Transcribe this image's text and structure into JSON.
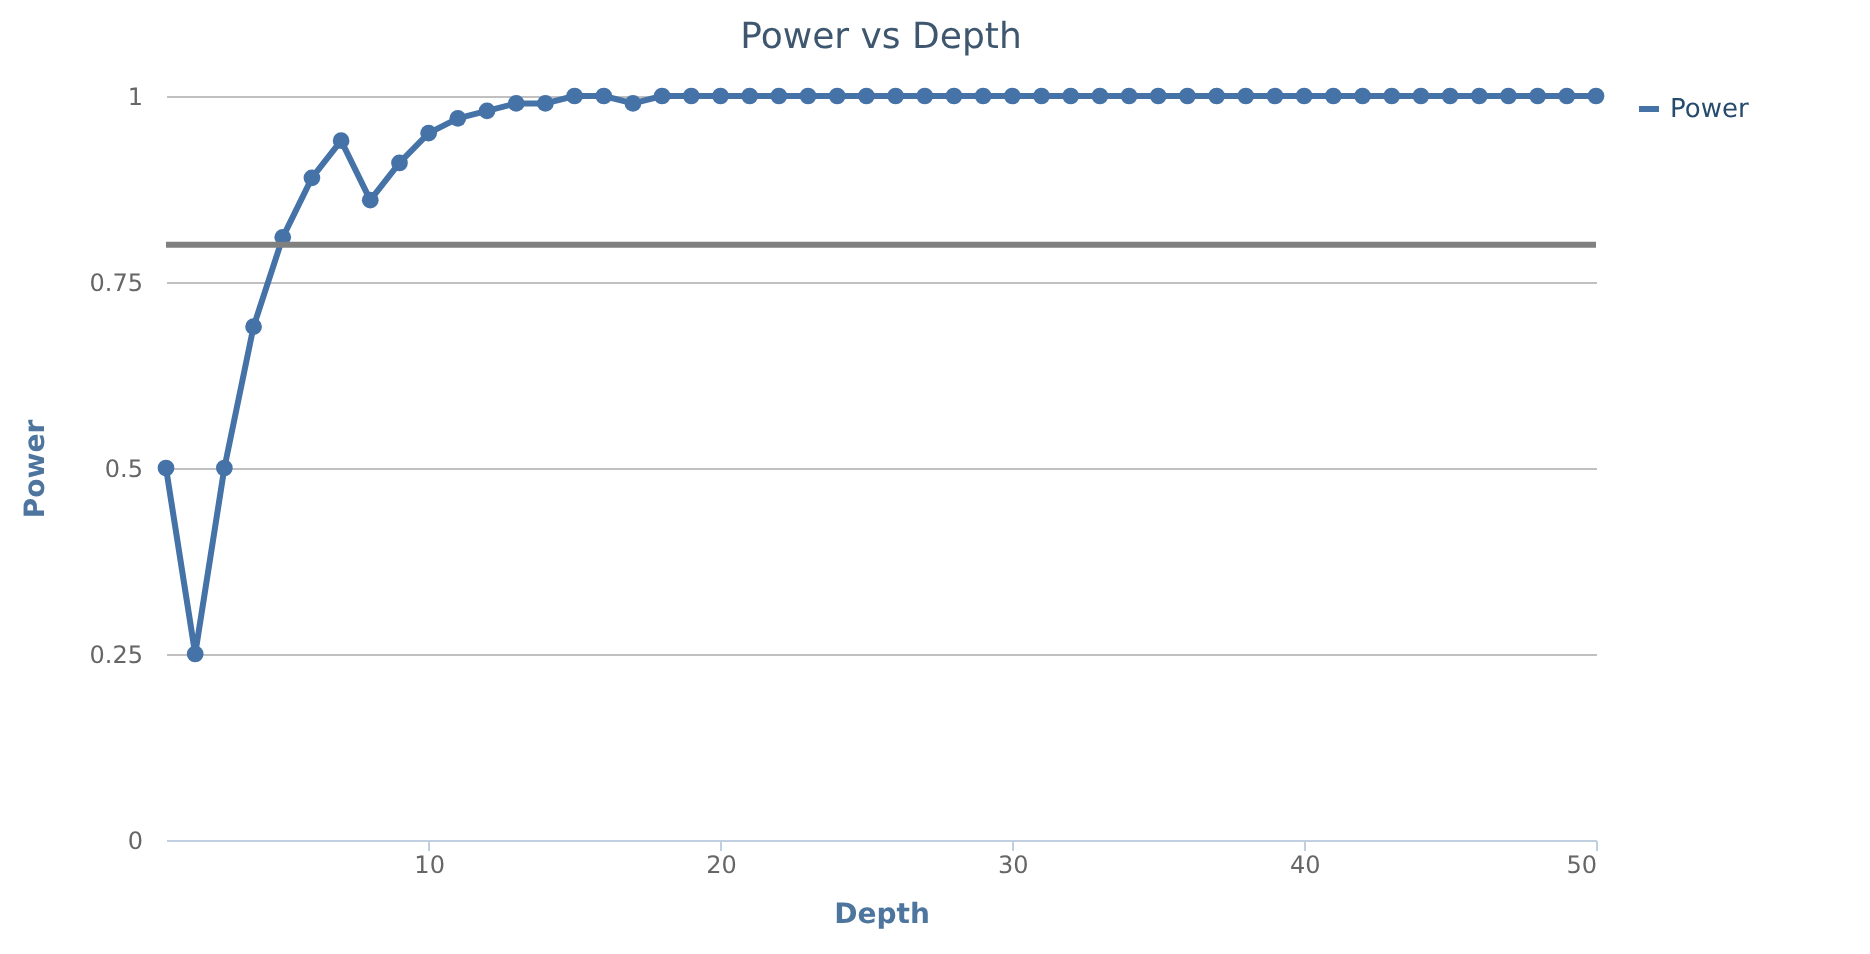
{
  "chart_data": {
    "type": "line",
    "title": "Power vs Depth",
    "xlabel": "Depth",
    "ylabel": "Power",
    "x": [
      1,
      2,
      3,
      4,
      5,
      6,
      7,
      8,
      9,
      10,
      11,
      12,
      13,
      14,
      15,
      16,
      17,
      18,
      19,
      20,
      21,
      22,
      23,
      24,
      25,
      26,
      27,
      28,
      29,
      30,
      31,
      32,
      33,
      34,
      35,
      36,
      37,
      38,
      39,
      40,
      41,
      42,
      43,
      44,
      45,
      46,
      47,
      48,
      49,
      50
    ],
    "series": [
      {
        "name": "Power",
        "color": "#4572a7",
        "values": [
          0.5,
          0.25,
          0.5,
          0.69,
          0.81,
          0.89,
          0.94,
          0.86,
          0.91,
          0.95,
          0.97,
          0.98,
          0.99,
          0.99,
          1,
          1,
          0.99,
          1,
          1,
          1,
          1,
          1,
          1,
          1,
          1,
          1,
          1,
          1,
          1,
          1,
          1,
          1,
          1,
          1,
          1,
          1,
          1,
          1,
          1,
          1,
          1,
          1,
          1,
          1,
          1,
          1,
          1,
          1,
          1,
          1
        ]
      }
    ],
    "xlim": [
      1,
      50
    ],
    "xticks": [
      10,
      20,
      30,
      40,
      50
    ],
    "ylim": [
      0,
      1
    ],
    "yticks": [
      0,
      0.25,
      0.5,
      0.75,
      1
    ],
    "ref_lines": [
      {
        "axis": "y",
        "value": 0.8,
        "color": "#808080"
      }
    ],
    "grid": "y",
    "legend": "right",
    "marker": "circle",
    "line_style": "solid"
  }
}
